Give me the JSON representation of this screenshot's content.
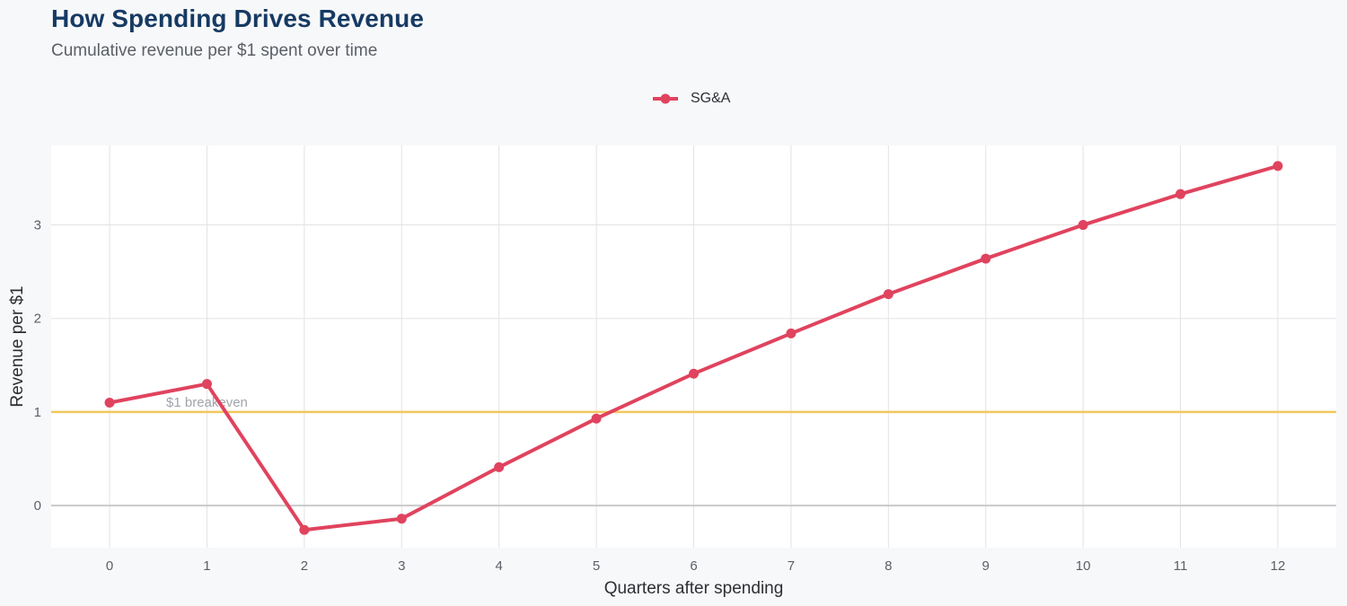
{
  "header": {
    "title": "How Spending Drives Revenue",
    "subtitle": "Cumulative revenue per $1 spent over time"
  },
  "colors": {
    "series": "#e0435e",
    "reference": "#f2c75c",
    "zero_line": "#c9c9c9",
    "grid": "#e3e3e3",
    "panel": "#ffffff",
    "background": "#f7f8fa"
  },
  "chart_data": {
    "type": "line",
    "title": "How Spending Drives Revenue",
    "subtitle": "Cumulative revenue per $1 spent over time",
    "xlabel": "Quarters after spending",
    "ylabel": "Revenue per $1",
    "x": [
      0,
      1,
      2,
      3,
      4,
      5,
      6,
      7,
      8,
      9,
      10,
      11,
      12
    ],
    "series": [
      {
        "name": "SG&A",
        "color": "#e0435e",
        "values": [
          1.1,
          1.3,
          -0.26,
          -0.14,
          0.41,
          0.93,
          1.41,
          1.84,
          2.26,
          2.64,
          3.0,
          3.33,
          3.63
        ]
      }
    ],
    "xlim": [
      -0.6,
      12.6
    ],
    "ylim": [
      -0.45,
      3.85
    ],
    "x_ticks": [
      0,
      1,
      2,
      3,
      4,
      5,
      6,
      7,
      8,
      9,
      10,
      11,
      12
    ],
    "y_ticks": [
      0,
      1,
      2,
      3
    ],
    "reference_line": {
      "y": 1,
      "label": "$1 breakeven",
      "label_x": 1
    },
    "zero_line": 0,
    "grid": true,
    "legend_position": "top-center"
  }
}
